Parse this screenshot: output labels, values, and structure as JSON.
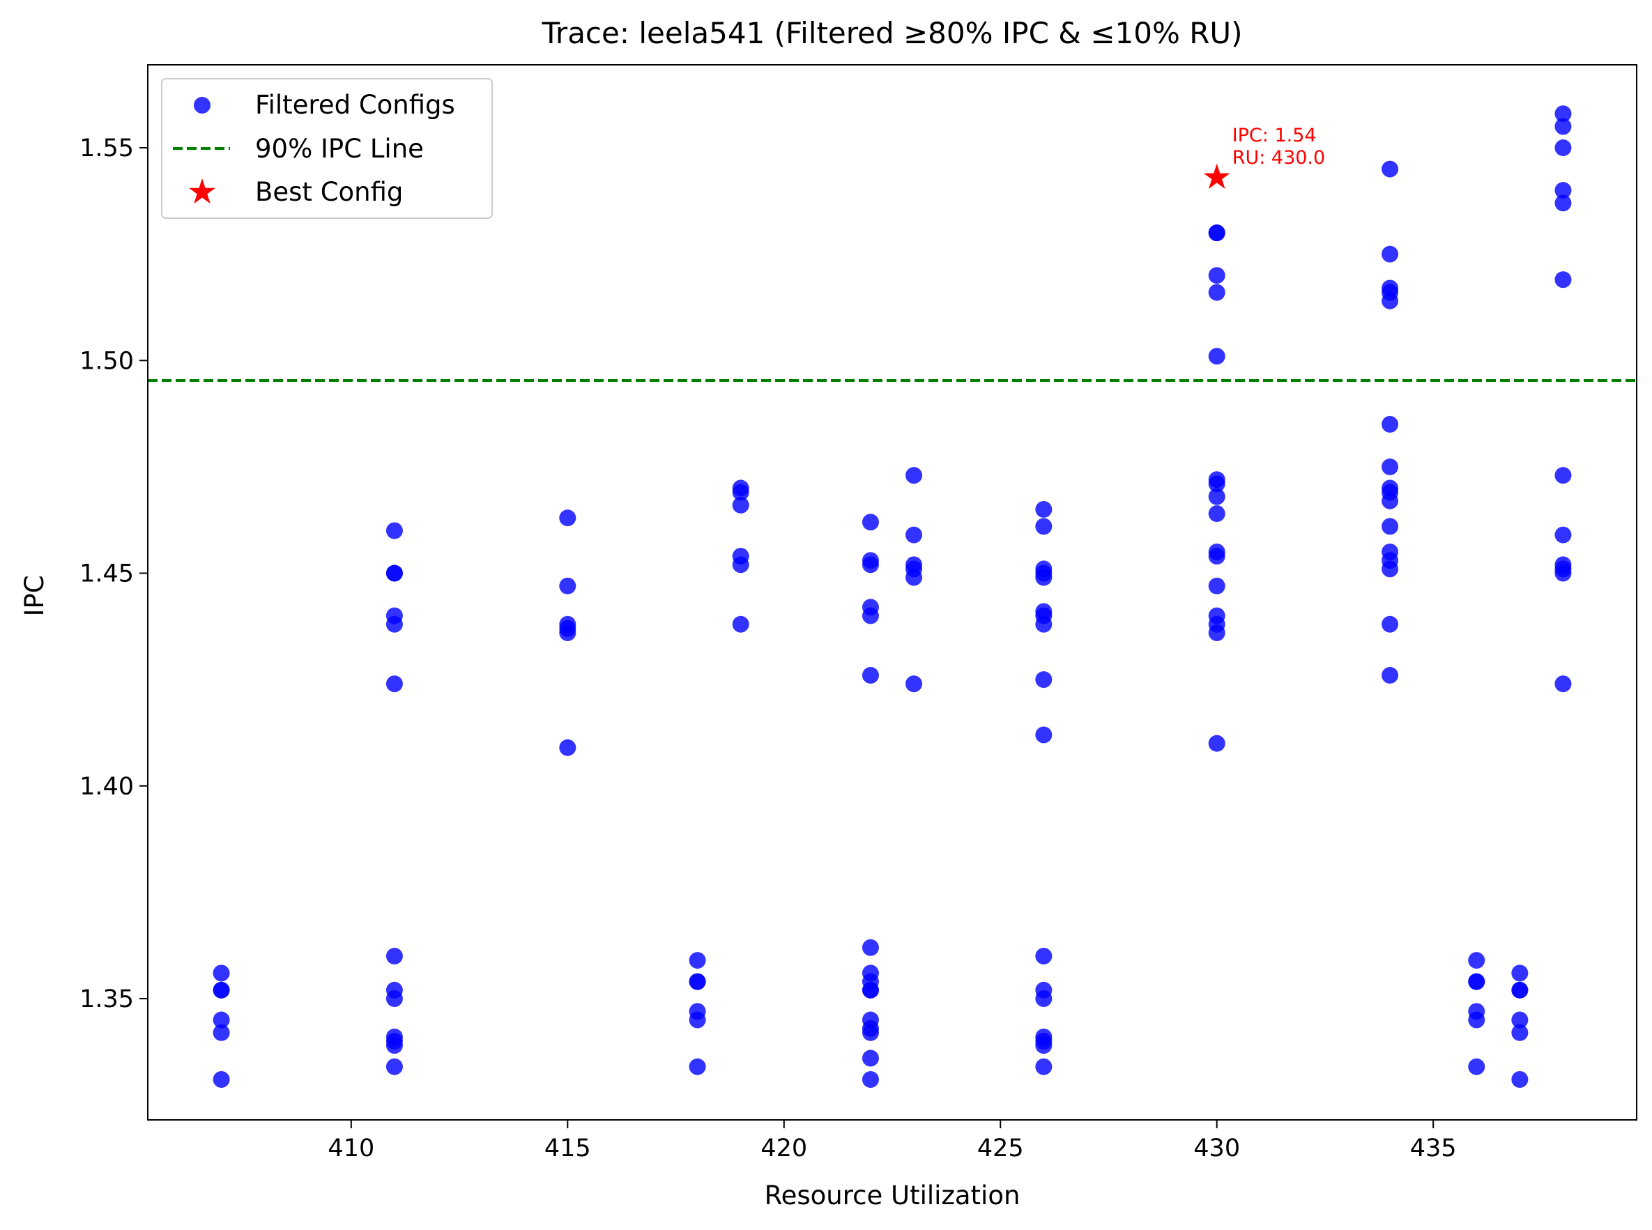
{
  "chart_data": {
    "type": "scatter",
    "title": "Trace: leela541 (Filtered ≥80% IPC & ≤10% RU)",
    "xlabel": "Resource Utilization",
    "ylabel": "IPC",
    "xlim": [
      405.3,
      439.7
    ],
    "ylim": [
      1.3215,
      1.5695
    ],
    "xticks": [
      410,
      415,
      420,
      425,
      430,
      435
    ],
    "xtick_labels": [
      "410",
      "415",
      "420",
      "425",
      "430",
      "435"
    ],
    "yticks": [
      1.35,
      1.4,
      1.45,
      1.5,
      1.55
    ],
    "ytick_labels": [
      "1.35",
      "1.40",
      "1.45",
      "1.50",
      "1.55"
    ],
    "grid": false,
    "legend_position": "top-left",
    "series": [
      {
        "name": "Filtered Configs",
        "marker": "circle",
        "color": "#0000ff",
        "points": [
          [
            407,
            1.356
          ],
          [
            407,
            1.352
          ],
          [
            407,
            1.352
          ],
          [
            407,
            1.345
          ],
          [
            407,
            1.342
          ],
          [
            407,
            1.331
          ],
          [
            411,
            1.46
          ],
          [
            411,
            1.45
          ],
          [
            411,
            1.45
          ],
          [
            411,
            1.44
          ],
          [
            411,
            1.438
          ],
          [
            411,
            1.424
          ],
          [
            411,
            1.36
          ],
          [
            411,
            1.352
          ],
          [
            411,
            1.35
          ],
          [
            411,
            1.341
          ],
          [
            411,
            1.34
          ],
          [
            411,
            1.339
          ],
          [
            411,
            1.334
          ],
          [
            415,
            1.463
          ],
          [
            415,
            1.447
          ],
          [
            415,
            1.438
          ],
          [
            415,
            1.437
          ],
          [
            415,
            1.436
          ],
          [
            415,
            1.409
          ],
          [
            418,
            1.359
          ],
          [
            418,
            1.354
          ],
          [
            418,
            1.354
          ],
          [
            418,
            1.347
          ],
          [
            418,
            1.345
          ],
          [
            418,
            1.334
          ],
          [
            419,
            1.47
          ],
          [
            419,
            1.469
          ],
          [
            419,
            1.466
          ],
          [
            419,
            1.454
          ],
          [
            419,
            1.452
          ],
          [
            419,
            1.438
          ],
          [
            422,
            1.462
          ],
          [
            422,
            1.453
          ],
          [
            422,
            1.452
          ],
          [
            422,
            1.442
          ],
          [
            422,
            1.44
          ],
          [
            422,
            1.426
          ],
          [
            422,
            1.362
          ],
          [
            422,
            1.356
          ],
          [
            422,
            1.354
          ],
          [
            422,
            1.352
          ],
          [
            422,
            1.352
          ],
          [
            422,
            1.345
          ],
          [
            422,
            1.343
          ],
          [
            422,
            1.342
          ],
          [
            422,
            1.336
          ],
          [
            422,
            1.331
          ],
          [
            423,
            1.473
          ],
          [
            423,
            1.459
          ],
          [
            423,
            1.452
          ],
          [
            423,
            1.451
          ],
          [
            423,
            1.449
          ],
          [
            423,
            1.424
          ],
          [
            426,
            1.465
          ],
          [
            426,
            1.461
          ],
          [
            426,
            1.451
          ],
          [
            426,
            1.45
          ],
          [
            426,
            1.449
          ],
          [
            426,
            1.441
          ],
          [
            426,
            1.44
          ],
          [
            426,
            1.438
          ],
          [
            426,
            1.425
          ],
          [
            426,
            1.412
          ],
          [
            426,
            1.36
          ],
          [
            426,
            1.352
          ],
          [
            426,
            1.35
          ],
          [
            426,
            1.341
          ],
          [
            426,
            1.34
          ],
          [
            426,
            1.339
          ],
          [
            426,
            1.334
          ],
          [
            430,
            1.53
          ],
          [
            430,
            1.53
          ],
          [
            430,
            1.52
          ],
          [
            430,
            1.516
          ],
          [
            430,
            1.501
          ],
          [
            430,
            1.472
          ],
          [
            430,
            1.471
          ],
          [
            430,
            1.468
          ],
          [
            430,
            1.464
          ],
          [
            430,
            1.455
          ],
          [
            430,
            1.454
          ],
          [
            430,
            1.447
          ],
          [
            430,
            1.44
          ],
          [
            430,
            1.438
          ],
          [
            430,
            1.436
          ],
          [
            430,
            1.41
          ],
          [
            434,
            1.545
          ],
          [
            434,
            1.525
          ],
          [
            434,
            1.517
          ],
          [
            434,
            1.516
          ],
          [
            434,
            1.514
          ],
          [
            434,
            1.485
          ],
          [
            434,
            1.475
          ],
          [
            434,
            1.47
          ],
          [
            434,
            1.469
          ],
          [
            434,
            1.467
          ],
          [
            434,
            1.461
          ],
          [
            434,
            1.455
          ],
          [
            434,
            1.453
          ],
          [
            434,
            1.451
          ],
          [
            434,
            1.438
          ],
          [
            434,
            1.426
          ],
          [
            436,
            1.359
          ],
          [
            436,
            1.354
          ],
          [
            436,
            1.354
          ],
          [
            436,
            1.347
          ],
          [
            436,
            1.345
          ],
          [
            436,
            1.334
          ],
          [
            437,
            1.356
          ],
          [
            437,
            1.352
          ],
          [
            437,
            1.352
          ],
          [
            437,
            1.345
          ],
          [
            437,
            1.342
          ],
          [
            437,
            1.331
          ],
          [
            438,
            1.558
          ],
          [
            438,
            1.555
          ],
          [
            438,
            1.55
          ],
          [
            438,
            1.54
          ],
          [
            438,
            1.537
          ],
          [
            438,
            1.519
          ],
          [
            438,
            1.473
          ],
          [
            438,
            1.459
          ],
          [
            438,
            1.452
          ],
          [
            438,
            1.451
          ],
          [
            438,
            1.45
          ],
          [
            438,
            1.424
          ]
        ]
      },
      {
        "name": "Best Config",
        "marker": "star",
        "color": "#ff0000",
        "points": [
          [
            430,
            1.543
          ]
        ]
      }
    ],
    "reference_lines": [
      {
        "name": "90% IPC Line",
        "axis": "y",
        "value": 1.4953,
        "style": "dashed",
        "color": "#008000"
      }
    ],
    "annotations": [
      {
        "lines": [
          "IPC: 1.54",
          "RU: 430.0"
        ],
        "x": 430,
        "y": 1.543,
        "color": "#ff0000"
      }
    ]
  }
}
